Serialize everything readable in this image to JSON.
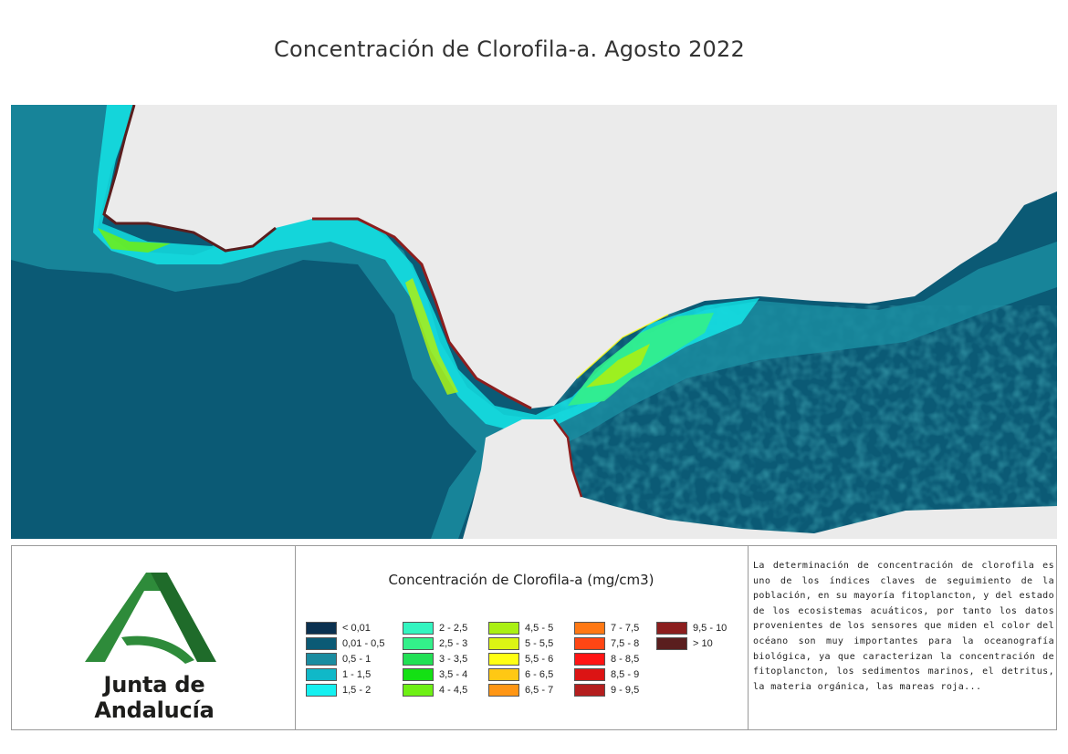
{
  "title": "Concentración de Clorofila-a. Agosto 2022",
  "logo": {
    "text": "Junta de Andalucía",
    "green": "#2e8b3a"
  },
  "legend": {
    "title": "Concentración de Clorofila-a (mg/cm3)",
    "columns": [
      [
        {
          "label": "< 0,01",
          "color": "#0b3150"
        },
        {
          "label": "0,01 - 0,5",
          "color": "#0b5a75"
        },
        {
          "label": "0,5 - 1",
          "color": "#1a8ca0"
        },
        {
          "label": "1 - 1,5",
          "color": "#10b8c8"
        },
        {
          "label": "1,5 - 2",
          "color": "#14f0f0"
        }
      ],
      [
        {
          "label": "2 - 2,5",
          "color": "#33f5c0"
        },
        {
          "label": "2,5 - 3",
          "color": "#33f08a"
        },
        {
          "label": "3 - 3,5",
          "color": "#22e055"
        },
        {
          "label": "3,5 - 4",
          "color": "#14e014"
        },
        {
          "label": "4 - 4,5",
          "color": "#6ef014"
        }
      ],
      [
        {
          "label": "4,5 - 5",
          "color": "#aaf014"
        },
        {
          "label": "5 - 5,5",
          "color": "#dcf514"
        },
        {
          "label": "5,5 - 6",
          "color": "#ffff14"
        },
        {
          "label": "6 - 6,5",
          "color": "#ffc814"
        },
        {
          "label": "6,5 - 7",
          "color": "#ff9614"
        }
      ],
      [
        {
          "label": "7 - 7,5",
          "color": "#ff7814"
        },
        {
          "label": "7,5 - 8",
          "color": "#ff4614"
        },
        {
          "label": "8 - 8,5",
          "color": "#ff1414"
        },
        {
          "label": "8,5 - 9",
          "color": "#dc1414"
        },
        {
          "label": "9 - 9,5",
          "color": "#b41e1e"
        }
      ],
      [
        {
          "label": "9,5 - 10",
          "color": "#8c1e1e"
        },
        {
          "label": "> 10",
          "color": "#5a1e1e"
        }
      ]
    ]
  },
  "description": "La determinación de concentración de clorofila es uno de los índices claves de seguimiento de la población, en su mayoría fitoplancton, y del estado de los ecosistemas acuáticos, por tanto los datos provenientes de los sensores que miden el color del océano son muy importantes para la oceanografía biológica, ya que caracterizan la concentración de fitoplancton, los sedimentos marinos, el detritus, la materia orgánica, las mareas roja...",
  "map": {
    "land_color": "#ebebeb",
    "ocean_color": "#0b5a75"
  }
}
